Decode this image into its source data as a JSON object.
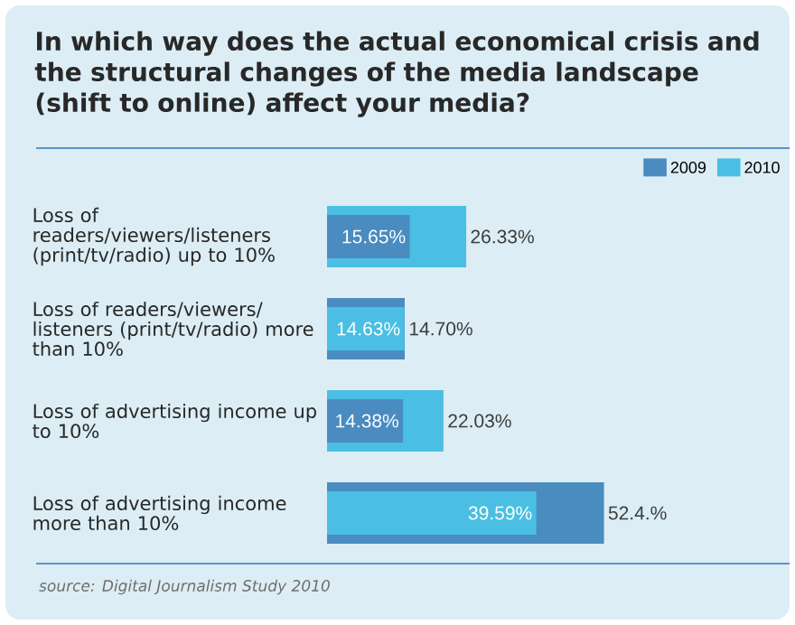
{
  "chart_data": {
    "type": "bar",
    "orientation": "horizontal",
    "title": "In which way does the actual economical crisis and the structural changes of the media landscape (shift to online) affect your media?",
    "categories": [
      "Loss of readers/viewers/listeners (print/tv/radio) up to 10%",
      "Loss of readers/viewers/ listeners (print/tv/radio) more than 10%",
      "Loss of advertising income up to 10%",
      "Loss of advertising income more than 10%"
    ],
    "series": [
      {
        "name": "2009",
        "color": "#4a8bc0",
        "values": [
          15.65,
          14.7,
          14.38,
          52.4
        ],
        "value_labels": [
          "15.65%",
          "14.70%",
          "14.38%",
          "52.4.%"
        ]
      },
      {
        "name": "2010",
        "color": "#4bbfe3",
        "values": [
          26.33,
          14.63,
          22.03,
          39.59
        ],
        "value_labels": [
          "26.33%",
          "14.63%",
          "22.03%",
          "39.59%"
        ]
      }
    ],
    "legend": "top right",
    "annotations": [
      "source: Digital Journalism Study 2010"
    ]
  }
}
